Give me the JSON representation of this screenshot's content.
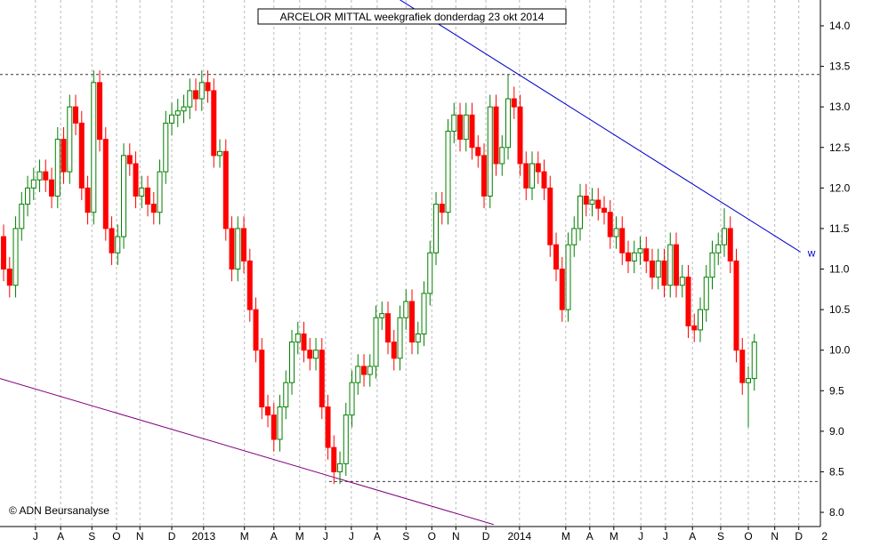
{
  "chart_data": {
    "type": "candlestick",
    "title": "ARCELOR MITTAL weekgrafiek donderdag 23 okt 2014",
    "copyright": "© ADN Beursanalyse",
    "up_color": "#008000",
    "down_color": "#ff0000",
    "open": [
      11.4,
      11.0,
      10.8,
      11.5,
      11.8,
      12.0,
      12.1,
      12.2,
      12.1,
      11.9,
      12.6,
      12.2,
      13.0,
      12.8,
      12.0,
      11.7,
      13.3,
      12.6,
      11.5,
      11.2,
      11.4,
      12.4,
      12.3,
      11.9,
      12.0,
      11.8,
      11.7,
      12.2,
      12.8,
      12.9,
      12.95,
      13.0,
      13.2,
      13.1,
      13.3,
      13.2,
      12.4,
      12.45,
      11.5,
      11.0,
      11.5,
      11.1,
      10.5,
      10.0,
      9.3,
      9.2,
      8.9,
      9.3,
      9.6,
      10.1,
      10.2,
      10.0,
      9.9,
      10.0,
      9.3,
      8.8,
      8.5,
      8.6,
      9.2,
      9.6,
      9.8,
      9.7,
      9.8,
      10.4,
      10.45,
      10.1,
      9.9,
      10.4,
      10.6,
      10.1,
      10.2,
      10.7,
      11.2,
      11.8,
      11.7,
      12.7,
      12.9,
      12.6,
      12.9,
      12.5,
      12.4,
      11.9,
      13.0,
      12.3,
      12.5,
      13.1,
      13.0,
      12.3,
      12.0,
      12.3,
      12.2,
      12.0,
      11.3,
      11.0,
      10.5,
      11.3,
      11.5,
      11.9,
      11.8,
      11.85,
      11.75,
      11.7,
      11.4,
      11.5,
      11.2,
      11.1,
      11.2,
      11.25,
      11.1,
      10.9,
      11.1,
      10.8,
      11.3,
      10.8,
      10.9,
      10.3,
      10.25,
      10.5,
      10.9,
      11.2,
      11.3,
      11.5,
      11.1,
      10.0,
      9.6,
      9.65
    ],
    "high": [
      11.55,
      11.15,
      11.65,
      11.95,
      12.15,
      12.25,
      12.35,
      12.35,
      12.25,
      12.75,
      12.75,
      13.15,
      13.15,
      12.95,
      12.15,
      13.45,
      13.45,
      12.75,
      11.65,
      11.55,
      12.55,
      12.55,
      12.45,
      12.15,
      12.15,
      11.95,
      12.35,
      12.95,
      13.05,
      13.1,
      13.15,
      13.35,
      13.35,
      13.45,
      13.45,
      13.35,
      12.6,
      12.6,
      11.65,
      11.65,
      11.65,
      11.25,
      10.65,
      10.15,
      9.45,
      9.35,
      9.45,
      9.75,
      10.25,
      10.35,
      10.35,
      10.15,
      10.15,
      10.15,
      9.45,
      8.95,
      8.75,
      9.35,
      9.75,
      9.95,
      9.95,
      9.95,
      10.55,
      10.6,
      10.6,
      10.25,
      10.55,
      10.75,
      10.75,
      10.35,
      10.85,
      11.35,
      11.95,
      11.95,
      12.85,
      13.05,
      13.05,
      13.05,
      13.05,
      12.65,
      12.55,
      13.15,
      13.15,
      12.65,
      13.4,
      13.25,
      13.15,
      12.45,
      12.45,
      12.45,
      12.35,
      12.15,
      11.45,
      11.15,
      11.45,
      11.65,
      12.05,
      12.05,
      12.0,
      12.0,
      11.9,
      11.85,
      11.65,
      11.65,
      11.35,
      11.35,
      11.4,
      11.4,
      11.25,
      11.25,
      11.25,
      11.45,
      11.45,
      11.05,
      11.05,
      10.45,
      10.65,
      11.05,
      11.35,
      11.45,
      11.75,
      11.65,
      11.25,
      10.15,
      9.8,
      10.2
    ],
    "low": [
      10.85,
      10.65,
      10.65,
      11.35,
      11.65,
      11.85,
      11.95,
      11.95,
      11.75,
      11.75,
      12.05,
      12.05,
      12.65,
      11.85,
      11.55,
      11.55,
      12.45,
      11.35,
      11.05,
      11.05,
      11.25,
      12.15,
      11.75,
      11.75,
      11.65,
      11.55,
      11.55,
      12.05,
      12.65,
      12.75,
      12.8,
      12.85,
      12.95,
      12.95,
      13.05,
      12.25,
      12.25,
      11.35,
      10.85,
      10.85,
      10.95,
      10.35,
      9.85,
      9.15,
      9.05,
      8.75,
      8.75,
      9.15,
      9.45,
      9.95,
      9.85,
      9.75,
      9.75,
      9.15,
      8.65,
      8.35,
      8.35,
      8.45,
      9.05,
      9.45,
      9.55,
      9.55,
      9.65,
      10.25,
      9.95,
      9.75,
      9.75,
      10.25,
      9.95,
      9.95,
      10.05,
      10.55,
      11.05,
      11.55,
      11.55,
      12.55,
      12.45,
      12.45,
      12.35,
      12.25,
      11.75,
      11.75,
      12.15,
      12.15,
      12.35,
      12.85,
      12.15,
      11.85,
      11.85,
      12.05,
      11.85,
      11.15,
      10.85,
      10.35,
      10.35,
      11.15,
      11.35,
      11.65,
      11.65,
      11.6,
      11.55,
      11.25,
      11.25,
      11.05,
      10.95,
      10.95,
      11.05,
      10.95,
      10.75,
      10.75,
      10.65,
      10.65,
      10.65,
      10.65,
      10.15,
      10.1,
      10.1,
      10.35,
      10.75,
      11.05,
      11.15,
      10.95,
      9.85,
      9.45,
      9.05,
      9.5
    ],
    "close": [
      11.0,
      10.8,
      11.5,
      11.8,
      12.0,
      12.1,
      12.2,
      12.1,
      11.9,
      12.6,
      12.2,
      13.0,
      12.8,
      12.0,
      11.7,
      13.3,
      12.6,
      11.5,
      11.2,
      11.4,
      12.4,
      12.3,
      11.9,
      12.0,
      11.8,
      11.7,
      12.2,
      12.8,
      12.9,
      12.95,
      13.0,
      13.2,
      13.1,
      13.3,
      13.2,
      12.4,
      12.45,
      11.5,
      11.0,
      11.5,
      11.1,
      10.5,
      10.0,
      9.3,
      9.2,
      8.9,
      9.3,
      9.6,
      10.1,
      10.2,
      10.0,
      9.9,
      10.0,
      9.3,
      8.8,
      8.5,
      8.6,
      9.2,
      9.6,
      9.8,
      9.7,
      9.8,
      10.4,
      10.45,
      10.1,
      9.9,
      10.4,
      10.6,
      10.1,
      10.2,
      10.7,
      11.2,
      11.8,
      11.7,
      12.7,
      12.9,
      12.6,
      12.9,
      12.5,
      12.4,
      11.9,
      13.0,
      12.3,
      12.5,
      13.1,
      13.0,
      12.3,
      12.0,
      12.3,
      12.2,
      12.0,
      11.3,
      11.0,
      10.5,
      11.3,
      11.5,
      11.9,
      11.8,
      11.85,
      11.75,
      11.7,
      11.4,
      11.5,
      11.2,
      11.1,
      11.2,
      11.25,
      11.1,
      10.9,
      11.1,
      10.8,
      11.3,
      10.8,
      10.9,
      10.3,
      10.25,
      10.5,
      10.9,
      11.2,
      11.3,
      11.5,
      11.1,
      10.0,
      9.6,
      9.65,
      10.1
    ],
    "xlim": [
      -0.6,
      136.0
    ],
    "xticks": [
      {
        "value": 5.3,
        "label": "J"
      },
      {
        "value": 9.5,
        "label": "A"
      },
      {
        "value": 14.7,
        "label": "S"
      },
      {
        "value": 18.8,
        "label": "O"
      },
      {
        "value": 22.7,
        "label": "N"
      },
      {
        "value": 28.0,
        "label": "D"
      },
      {
        "value": 33.3,
        "label": "2013"
      },
      {
        "value": 40.1,
        "label": "M"
      },
      {
        "value": 45.0,
        "label": "A"
      },
      {
        "value": 49.3,
        "label": "M"
      },
      {
        "value": 53.6,
        "label": "J"
      },
      {
        "value": 57.9,
        "label": "J"
      },
      {
        "value": 62.2,
        "label": "A"
      },
      {
        "value": 67.0,
        "label": "S"
      },
      {
        "value": 71.3,
        "label": "O"
      },
      {
        "value": 75.3,
        "label": "N"
      },
      {
        "value": 80.3,
        "label": "D"
      },
      {
        "value": 85.9,
        "label": "2014"
      },
      {
        "value": 93.6,
        "label": "M"
      },
      {
        "value": 97.6,
        "label": "A"
      },
      {
        "value": 101.6,
        "label": "M"
      },
      {
        "value": 106.1,
        "label": "J"
      },
      {
        "value": 110.2,
        "label": "J"
      },
      {
        "value": 114.7,
        "label": "A"
      },
      {
        "value": 119.4,
        "label": "S"
      },
      {
        "value": 124.0,
        "label": "O"
      },
      {
        "value": 128.4,
        "label": "N"
      },
      {
        "value": 132.4,
        "label": "D"
      },
      {
        "value": 136.7,
        "label": "2"
      }
    ],
    "ylim": [
      7.825,
      14.318
    ],
    "yticks": [
      {
        "value": 8.0,
        "label": "8.0"
      },
      {
        "value": 8.5,
        "label": "8.5"
      },
      {
        "value": 9.0,
        "label": "9.0"
      },
      {
        "value": 9.5,
        "label": "9.5"
      },
      {
        "value": 10.0,
        "label": "10.0"
      },
      {
        "value": 10.5,
        "label": "10.5"
      },
      {
        "value": 11.0,
        "label": "11.0"
      },
      {
        "value": 11.5,
        "label": "11.5"
      },
      {
        "value": 12.0,
        "label": "12.0"
      },
      {
        "value": 12.5,
        "label": "12.5"
      },
      {
        "value": 13.0,
        "label": "13.0"
      },
      {
        "value": 13.5,
        "label": "13.5"
      },
      {
        "value": 14.0,
        "label": "14.0"
      }
    ],
    "grid": true,
    "levels": [
      {
        "value": 13.4,
        "start": -0.6
      },
      {
        "value": 8.38,
        "start": 54.2
      }
    ],
    "trendlines": [
      {
        "color": "#0000cc",
        "start": [
          66,
          14.32
        ],
        "end": [
          132.7,
          11.21
        ],
        "label": "w"
      },
      {
        "color": "#800080",
        "start": [
          -0.6,
          9.65
        ],
        "end": [
          81.6,
          7.85
        ]
      }
    ]
  }
}
